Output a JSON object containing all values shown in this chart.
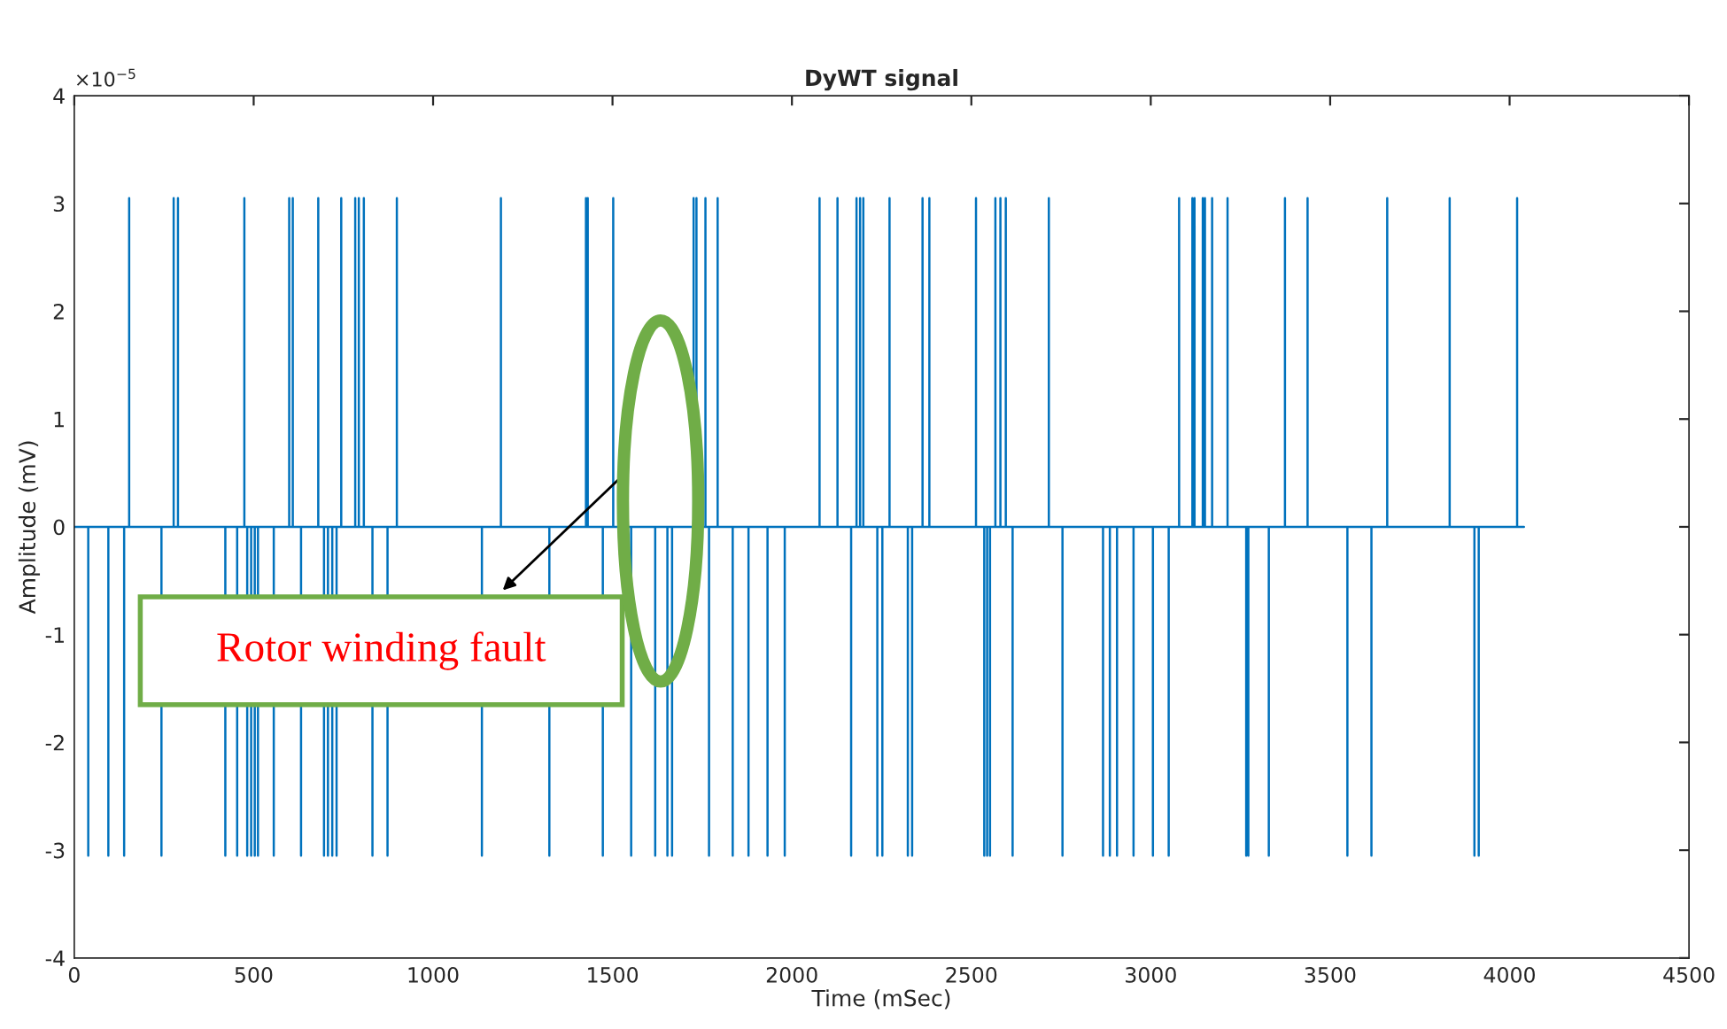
{
  "chart_data": {
    "type": "line",
    "title": "DyWT signal",
    "xlabel": "Time (mSec)",
    "ylabel": "Amplitude (mV)",
    "xlim": [
      0,
      4500
    ],
    "xticks": [
      0,
      500,
      1000,
      1500,
      2000,
      2500,
      3000,
      3500,
      4000,
      4500
    ],
    "ylim": [
      -4,
      4
    ],
    "yticks": [
      -4,
      -3,
      -2,
      -1,
      0,
      1,
      2,
      3,
      4
    ],
    "annotations": [
      "×10$^{−5}$",
      "Rotor winding fault"
    ],
    "grid": false,
    "marker": "none",
    "line_style": "solid",
    "series": [
      {
        "color": "#0072bd",
        "x": [
          0,
          39,
          39,
          39,
          95,
          95,
          95,
          139,
          139,
          139,
          153,
          153,
          153,
          243,
          243,
          243,
          277,
          277,
          277,
          289,
          289,
          289,
          421,
          421,
          421,
          454,
          454,
          454,
          474,
          474,
          474,
          482,
          482,
          482,
          493,
          493,
          493,
          503,
          503,
          503,
          512,
          512,
          512,
          556,
          556,
          556,
          599,
          599,
          599,
          609,
          609,
          609,
          632,
          632,
          632,
          680,
          680,
          680,
          696,
          696,
          696,
          707,
          707,
          707,
          719,
          719,
          719,
          731,
          731,
          731,
          744,
          744,
          744,
          783,
          783,
          783,
          793,
          793,
          793,
          807,
          807,
          807,
          831,
          831,
          831,
          873,
          873,
          873,
          899,
          899,
          899,
          1136,
          1136,
          1136,
          1189,
          1189,
          1189,
          1324,
          1324,
          1324,
          1426,
          1426,
          1426,
          1431,
          1431,
          1431,
          1473,
          1473,
          1473,
          1502,
          1502,
          1502,
          1552,
          1552,
          1552,
          1619,
          1619,
          1619,
          1653,
          1653,
          1653,
          1666,
          1666,
          1666,
          1726,
          1726,
          1726,
          1734,
          1734,
          1734,
          1759,
          1759,
          1759,
          1769,
          1769,
          1769,
          1793,
          1793,
          1793,
          1835,
          1835,
          1835,
          1879,
          1879,
          1879,
          1932,
          1932,
          1932,
          1980,
          1980,
          1980,
          2077,
          2077,
          2077,
          2127,
          2127,
          2127,
          2165,
          2165,
          2165,
          2180,
          2180,
          2180,
          2190,
          2190,
          2190,
          2199,
          2199,
          2199,
          2238,
          2238,
          2238,
          2252,
          2252,
          2252,
          2272,
          2272,
          2272,
          2323,
          2323,
          2323,
          2335,
          2335,
          2335,
          2364,
          2364,
          2364,
          2383,
          2383,
          2383,
          2513,
          2513,
          2513,
          2536,
          2536,
          2536,
          2544,
          2544,
          2544,
          2552,
          2552,
          2552,
          2567,
          2567,
          2567,
          2581,
          2581,
          2581,
          2596,
          2596,
          2596,
          2615,
          2615,
          2615,
          2716,
          2716,
          2716,
          2754,
          2754,
          2754,
          2867,
          2867,
          2867,
          2886,
          2886,
          2886,
          2906,
          2906,
          2906,
          2952,
          2952,
          2952,
          3006,
          3006,
          3006,
          3050,
          3050,
          3050,
          3079,
          3079,
          3079,
          3116,
          3116,
          3116,
          3122,
          3122,
          3122,
          3145,
          3145,
          3145,
          3151,
          3151,
          3151,
          3171,
          3171,
          3171,
          3214,
          3214,
          3214,
          3266,
          3266,
          3266,
          3272,
          3272,
          3272,
          3329,
          3329,
          3329,
          3374,
          3374,
          3374,
          3437,
          3437,
          3437,
          3548,
          3548,
          3548,
          3615,
          3615,
          3615,
          3659,
          3659,
          3659,
          3833,
          3833,
          3833,
          3902,
          3902,
          3902,
          3914,
          3914,
          3914,
          4021,
          4021,
          4021,
          4040
        ],
        "values": [
          0,
          0,
          -3.05,
          0,
          0,
          -3.05,
          0,
          0,
          -3.05,
          0,
          0,
          3.05,
          0,
          0,
          -3.05,
          0,
          0,
          3.05,
          0,
          0,
          3.05,
          0,
          0,
          -3.05,
          0,
          0,
          -3.05,
          0,
          0,
          3.05,
          0,
          0,
          -3.05,
          0,
          0,
          -3.05,
          0,
          0,
          -3.05,
          0,
          0,
          -3.05,
          0,
          0,
          -3.05,
          0,
          0,
          3.05,
          0,
          0,
          3.05,
          0,
          0,
          -3.05,
          0,
          0,
          3.05,
          0,
          0,
          -3.05,
          0,
          0,
          -3.05,
          0,
          0,
          -3.05,
          0,
          0,
          -3.05,
          0,
          0,
          3.05,
          0,
          0,
          3.05,
          0,
          0,
          3.05,
          0,
          0,
          3.05,
          0,
          0,
          -3.05,
          0,
          0,
          -3.05,
          0,
          0,
          3.05,
          0,
          0,
          -3.05,
          0,
          0,
          3.05,
          0,
          0,
          -3.05,
          0,
          0,
          3.05,
          0,
          0,
          3.05,
          0,
          0,
          -3.05,
          0,
          0,
          3.05,
          0,
          0,
          -3.05,
          0,
          0,
          -3.05,
          0,
          0,
          -3.05,
          0,
          0,
          -3.05,
          0,
          0,
          3.05,
          0,
          0,
          3.05,
          0,
          0,
          3.05,
          0,
          0,
          -3.05,
          0,
          0,
          3.05,
          0,
          0,
          -3.05,
          0,
          0,
          -3.05,
          0,
          0,
          -3.05,
          0,
          0,
          -3.05,
          0,
          0,
          3.05,
          0,
          0,
          3.05,
          0,
          0,
          -3.05,
          0,
          0,
          3.05,
          0,
          0,
          3.05,
          0,
          0,
          3.05,
          0,
          0,
          -3.05,
          0,
          0,
          -3.05,
          0,
          0,
          3.05,
          0,
          0,
          -3.05,
          0,
          0,
          -3.05,
          0,
          0,
          3.05,
          0,
          0,
          3.05,
          0,
          0,
          3.05,
          0,
          0,
          -3.05,
          0,
          0,
          -3.05,
          0,
          0,
          -3.05,
          0,
          0,
          3.05,
          0,
          0,
          3.05,
          0,
          0,
          3.05,
          0,
          0,
          -3.05,
          0,
          0,
          3.05,
          0,
          0,
          -3.05,
          0,
          0,
          -3.05,
          0,
          0,
          -3.05,
          0,
          0,
          -3.05,
          0,
          0,
          -3.05,
          0,
          0,
          -3.05,
          0,
          0,
          -3.05,
          0,
          0,
          3.05,
          0,
          0,
          3.05,
          0,
          0,
          3.05,
          0,
          0,
          3.05,
          0,
          0,
          3.05,
          0,
          0,
          3.05,
          0,
          0,
          3.05,
          0,
          0,
          -3.05,
          0,
          0,
          -3.05,
          0,
          0,
          -3.05,
          0,
          0,
          3.05,
          0,
          0,
          3.05,
          0,
          0,
          -3.05,
          0,
          0,
          -3.05,
          0,
          0,
          3.05,
          0,
          0,
          3.05,
          0,
          0,
          -3.05,
          0,
          0,
          -3.05,
          0,
          0,
          3.05,
          0,
          0
        ]
      }
    ]
  }
}
